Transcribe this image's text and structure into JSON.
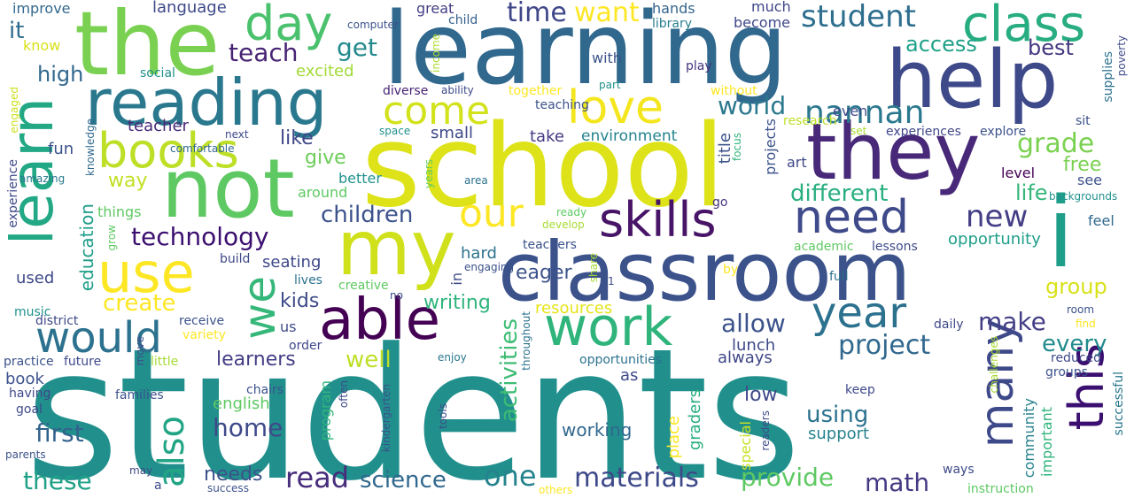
{
  "word_cloud": {
    "background": "#ffffff",
    "palette": [
      "#440154",
      "#3b528b",
      "#21918c",
      "#5ec962",
      "#fde725"
    ],
    "words": [
      {
        "text": "students",
        "color": "#21908d"
      },
      {
        "text": "school",
        "color": "#dde318"
      },
      {
        "text": "classroom",
        "color": "#3b528b"
      },
      {
        "text": "learning",
        "color": "#31688e"
      },
      {
        "text": "the",
        "color": "#7ad151"
      },
      {
        "text": "help",
        "color": "#3e4989"
      },
      {
        "text": "not",
        "color": "#5ec962"
      },
      {
        "text": "they",
        "color": "#482878"
      },
      {
        "text": "my",
        "color": "#d0e11c"
      },
      {
        "text": "learn",
        "color": "#22a884"
      },
      {
        "text": "reading",
        "color": "#2a788e"
      },
      {
        "text": "i",
        "color": "#1f9e89"
      },
      {
        "text": "class",
        "color": "#27ad81"
      },
      {
        "text": "able",
        "color": "#440154"
      },
      {
        "text": "work",
        "color": "#2fb47c"
      },
      {
        "text": "use",
        "color": "#fde725"
      },
      {
        "text": "love",
        "color": "#f4e61e"
      },
      {
        "text": "books",
        "color": "#bddf26"
      },
      {
        "text": "day",
        "color": "#4ac16d"
      },
      {
        "text": "many",
        "color": "#3e4989"
      },
      {
        "text": "this",
        "color": "#3b0f70"
      },
      {
        "text": "need",
        "color": "#3e4a89"
      },
      {
        "text": "skills",
        "color": "#481467"
      },
      {
        "text": "would",
        "color": "#2c728e"
      },
      {
        "text": "year",
        "color": "#2c718e"
      },
      {
        "text": "we",
        "color": "#35b779"
      },
      {
        "text": "our",
        "color": "#fde725"
      },
      {
        "text": "come",
        "color": "#d2e21b"
      },
      {
        "text": "student",
        "color": "#2e6e8e"
      },
      {
        "text": "nannan",
        "color": "#2a788e"
      },
      {
        "text": "also",
        "color": "#21a585"
      },
      {
        "text": "technology",
        "color": "#3b0f70"
      },
      {
        "text": "project",
        "color": "#31688e"
      },
      {
        "text": "materials",
        "color": "#3e4989"
      },
      {
        "text": "read",
        "color": "#472d7b"
      },
      {
        "text": "science",
        "color": "#31688e"
      },
      {
        "text": "these",
        "color": "#1fa187"
      },
      {
        "text": "first",
        "color": "#33638d"
      },
      {
        "text": "want",
        "color": "#fde725"
      },
      {
        "text": "time",
        "color": "#3f4788"
      },
      {
        "text": "grade",
        "color": "#7ad151"
      },
      {
        "text": "new",
        "color": "#433e85"
      },
      {
        "text": "make",
        "color": "#433e85"
      },
      {
        "text": "every",
        "color": "#228b8d"
      },
      {
        "text": "allow",
        "color": "#3b528b"
      },
      {
        "text": "create",
        "color": "#fde725"
      },
      {
        "text": "provide",
        "color": "#5ec962"
      },
      {
        "text": "math",
        "color": "#443a83"
      },
      {
        "text": "one",
        "color": "#25838e"
      },
      {
        "text": "activities",
        "color": "#3dbc74"
      },
      {
        "text": "world",
        "color": "#2a788e"
      },
      {
        "text": "different",
        "color": "#29af7f"
      },
      {
        "text": "children",
        "color": "#3b528b"
      },
      {
        "text": "using",
        "color": "#2c728e"
      },
      {
        "text": "home",
        "color": "#3e4a89"
      },
      {
        "text": "would_like",
        "color": "#3f4788"
      },
      {
        "text": "well",
        "color": "#bddf26"
      },
      {
        "text": "learners",
        "color": "#433e85"
      },
      {
        "text": "get",
        "color": "#238a8d"
      },
      {
        "text": "teach",
        "color": "#482475"
      },
      {
        "text": "access",
        "color": "#1fa188"
      },
      {
        "text": "best",
        "color": "#453882"
      },
      {
        "text": "high",
        "color": "#31688e"
      },
      {
        "text": "free",
        "color": "#7ad151"
      },
      {
        "text": "life",
        "color": "#35b779"
      },
      {
        "text": "kids",
        "color": "#3e4a89"
      },
      {
        "text": "group",
        "color": "#d8e219"
      },
      {
        "text": "education",
        "color": "#1f9e89"
      },
      {
        "text": "writing",
        "color": "#2fb47c"
      },
      {
        "text": "needs",
        "color": "#3b528b"
      },
      {
        "text": "support",
        "color": "#26828e"
      },
      {
        "text": "working",
        "color": "#31688e"
      },
      {
        "text": "opportunity",
        "color": "#1f9e89"
      },
      {
        "text": "like",
        "color": "#404688"
      },
      {
        "text": "give",
        "color": "#6ccd5a"
      },
      {
        "text": "way",
        "color": "#c2df23"
      },
      {
        "text": "small",
        "color": "#3e4989"
      },
      {
        "text": "take",
        "color": "#443983"
      },
      {
        "text": "environment",
        "color": "#25838e"
      },
      {
        "text": "resources",
        "color": "#e5e419"
      },
      {
        "text": "eager",
        "color": "#3b528b"
      },
      {
        "text": "seating",
        "color": "#3e4989"
      },
      {
        "text": "lunch",
        "color": "#3e4989"
      },
      {
        "text": "always",
        "color": "#3f4788"
      },
      {
        "text": "english",
        "color": "#5ec962"
      },
      {
        "text": "program",
        "color": "#31b57b"
      },
      {
        "text": "graders",
        "color": "#29af7f"
      },
      {
        "text": "place",
        "color": "#fde725"
      },
      {
        "text": "low",
        "color": "#3e4a89"
      },
      {
        "text": "community",
        "color": "#26828e"
      },
      {
        "text": "important",
        "color": "#2fb47c"
      },
      {
        "text": "special",
        "color": "#c8e020"
      },
      {
        "text": "successful",
        "color": "#2a788e"
      },
      {
        "text": "teacher",
        "color": "#482878"
      },
      {
        "text": "excited",
        "color": "#a2da37"
      },
      {
        "text": "improve",
        "color": "#31688e"
      },
      {
        "text": "language",
        "color": "#3e4989"
      },
      {
        "text": "great",
        "color": "#433e85"
      },
      {
        "text": "hands",
        "color": "#33638d"
      },
      {
        "text": "much",
        "color": "#404688"
      },
      {
        "text": "become",
        "color": "#3f4788"
      },
      {
        "text": "library",
        "color": "#277f8e"
      },
      {
        "text": "computer",
        "color": "#3b528b"
      },
      {
        "text": "child",
        "color": "#35608d"
      },
      {
        "text": "it",
        "color": "#2f6c8e"
      },
      {
        "text": "know",
        "color": "#d8e219"
      },
      {
        "text": "income",
        "color": "#addc30"
      },
      {
        "text": "supplies",
        "color": "#2c728e"
      },
      {
        "text": "poverty",
        "color": "#3e4989"
      },
      {
        "text": "social",
        "color": "#21918c"
      },
      {
        "text": "play",
        "color": "#46337f"
      },
      {
        "text": "with",
        "color": "#3b528b"
      },
      {
        "text": "ability",
        "color": "#3e4a89"
      },
      {
        "text": "together",
        "color": "#fde725"
      },
      {
        "text": "diverse",
        "color": "#482475"
      },
      {
        "text": "part",
        "color": "#21918c"
      },
      {
        "text": "without",
        "color": "#fde725"
      },
      {
        "text": "teaching",
        "color": "#3b528b"
      },
      {
        "text": "engaged",
        "color": "#cde11d"
      },
      {
        "text": "research",
        "color": "#bddf26"
      },
      {
        "text": "even",
        "color": "#3e4989"
      },
      {
        "text": "sit",
        "color": "#3b528b"
      },
      {
        "text": "set",
        "color": "#a8db34"
      },
      {
        "text": "experiences",
        "color": "#3f4788"
      },
      {
        "text": "explore",
        "color": "#3b528b"
      },
      {
        "text": "knowledge",
        "color": "#31688e"
      },
      {
        "text": "next",
        "color": "#3e4989"
      },
      {
        "text": "space",
        "color": "#21918c"
      },
      {
        "text": "focus",
        "color": "#2fb47c"
      },
      {
        "text": "fun",
        "color": "#3b528b"
      },
      {
        "text": "comfortable",
        "color": "#31688e"
      },
      {
        "text": "amazing",
        "color": "#2a788e"
      },
      {
        "text": "experience",
        "color": "#3e4989"
      },
      {
        "text": "better",
        "color": "#20928c"
      },
      {
        "text": "around",
        "color": "#5ec962"
      },
      {
        "text": "area",
        "color": "#2c728e"
      },
      {
        "text": "years",
        "color": "#5ec962"
      },
      {
        "text": "title",
        "color": "#3b528b"
      },
      {
        "text": "projects",
        "color": "#3b528b"
      },
      {
        "text": "art",
        "color": "#3e4989"
      },
      {
        "text": "level",
        "color": "#440154"
      },
      {
        "text": "see",
        "color": "#3b528b"
      },
      {
        "text": "backgrounds",
        "color": "#21918c"
      },
      {
        "text": "things",
        "color": "#5ec962"
      },
      {
        "text": "grow",
        "color": "#5ec962"
      },
      {
        "text": "go",
        "color": "#46337f"
      },
      {
        "text": "ready",
        "color": "#5ec962"
      },
      {
        "text": "develop",
        "color": "#a8db34"
      },
      {
        "text": "feel",
        "color": "#31688e"
      },
      {
        "text": "build",
        "color": "#3e4989"
      },
      {
        "text": "hard",
        "color": "#2c728e"
      },
      {
        "text": "teachers",
        "color": "#3b528b"
      },
      {
        "text": "academic",
        "color": "#5ec962"
      },
      {
        "text": "lessons",
        "color": "#3e4a89"
      },
      {
        "text": "used",
        "color": "#3e4989"
      },
      {
        "text": "lives",
        "color": "#2c728e"
      },
      {
        "text": "creative",
        "color": "#5ec962"
      },
      {
        "text": "no",
        "color": "#3e4989"
      },
      {
        "text": "in",
        "color": "#3e4a89"
      },
      {
        "text": "engaging",
        "color": "#3b528b"
      },
      {
        "text": "share",
        "color": "#a8db34"
      },
      {
        "text": "1",
        "color": "#3e4989"
      },
      {
        "text": "by",
        "color": "#fde725"
      },
      {
        "text": "full",
        "color": "#2c728e"
      },
      {
        "text": "music",
        "color": "#21918c"
      },
      {
        "text": "district",
        "color": "#3e4989"
      },
      {
        "text": "receive",
        "color": "#3b528b"
      },
      {
        "text": "us",
        "color": "#3e4a89"
      },
      {
        "text": "variety",
        "color": "#fde725"
      },
      {
        "text": "order",
        "color": "#3e4989"
      },
      {
        "text": "daily",
        "color": "#3e4a89"
      },
      {
        "text": "room",
        "color": "#3b528b"
      },
      {
        "text": "find",
        "color": "#fde725"
      },
      {
        "text": "practice",
        "color": "#3b528b"
      },
      {
        "text": "future",
        "color": "#3e4989"
      },
      {
        "text": "move",
        "color": "#3e4a89"
      },
      {
        "text": "little",
        "color": "#a8db34"
      },
      {
        "text": "throughout",
        "color": "#2c728e"
      },
      {
        "text": "enjoy",
        "color": "#2a788e"
      },
      {
        "text": "opportunities",
        "color": "#2c728e"
      },
      {
        "text": "reduced",
        "color": "#3e4989"
      },
      {
        "text": "challenges",
        "color": "#a8db34"
      },
      {
        "text": "groups",
        "color": "#3b528b"
      },
      {
        "text": "as",
        "color": "#3e4a89"
      },
      {
        "text": "book",
        "color": "#3b528b"
      },
      {
        "text": "having",
        "color": "#3e4989"
      },
      {
        "text": "families",
        "color": "#3b528b"
      },
      {
        "text": "chairs",
        "color": "#3b528b"
      },
      {
        "text": "often",
        "color": "#3e4989"
      },
      {
        "text": "keep",
        "color": "#3e4a89"
      },
      {
        "text": "goal",
        "color": "#3e4989"
      },
      {
        "text": "kindergarten",
        "color": "#3b528b"
      },
      {
        "text": "tools",
        "color": "#3e4a89"
      },
      {
        "text": "readers",
        "color": "#3e4989"
      },
      {
        "text": "parents",
        "color": "#3b528b"
      },
      {
        "text": "ways",
        "color": "#3e4a89"
      },
      {
        "text": "may",
        "color": "#3e4989"
      },
      {
        "text": "a",
        "color": "#3e4989"
      },
      {
        "text": "success",
        "color": "#3b528b"
      },
      {
        "text": "others",
        "color": "#fde725"
      },
      {
        "text": "instruction",
        "color": "#5ec962"
      }
    ]
  }
}
